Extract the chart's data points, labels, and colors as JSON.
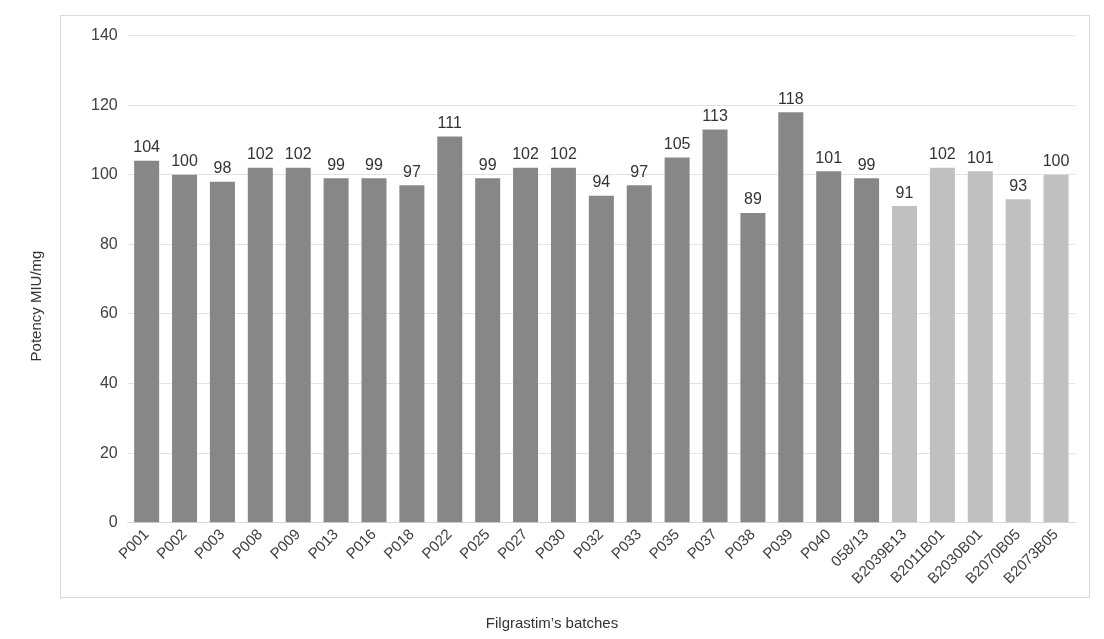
{
  "chart_data": {
    "type": "bar",
    "xlabel": "Filgrastim’s batches",
    "ylabel": "Potency MIU/mg",
    "categories": [
      "P001",
      "P002",
      "P003",
      "P008",
      "P009",
      "P013",
      "P016",
      "P018",
      "P022",
      "P025",
      "P027",
      "P030",
      "P032",
      "P033",
      "P035",
      "P037",
      "P038",
      "P039",
      "P040",
      "058/13",
      "B2039B13",
      "B2011B01",
      "B2030B01",
      "B2070B05",
      "B2073B05"
    ],
    "values": [
      104,
      100,
      98,
      102,
      102,
      99,
      99,
      97,
      111,
      99,
      102,
      102,
      94,
      97,
      105,
      113,
      89,
      118,
      101,
      99,
      91,
      102,
      101,
      93,
      100
    ],
    "colors": [
      "#878787",
      "#878787",
      "#878787",
      "#878787",
      "#878787",
      "#878787",
      "#878787",
      "#878787",
      "#878787",
      "#878787",
      "#878787",
      "#878787",
      "#878787",
      "#878787",
      "#878787",
      "#878787",
      "#878787",
      "#878787",
      "#878787",
      "#878787",
      "#c0c0c0",
      "#c0c0c0",
      "#c0c0c0",
      "#c0c0c0",
      "#c0c0c0"
    ],
    "ylim": [
      0,
      140
    ],
    "yticks": [
      0,
      20,
      40,
      60,
      80,
      100,
      120,
      140
    ],
    "grid": "y",
    "data_labels": true,
    "legend": false
  }
}
